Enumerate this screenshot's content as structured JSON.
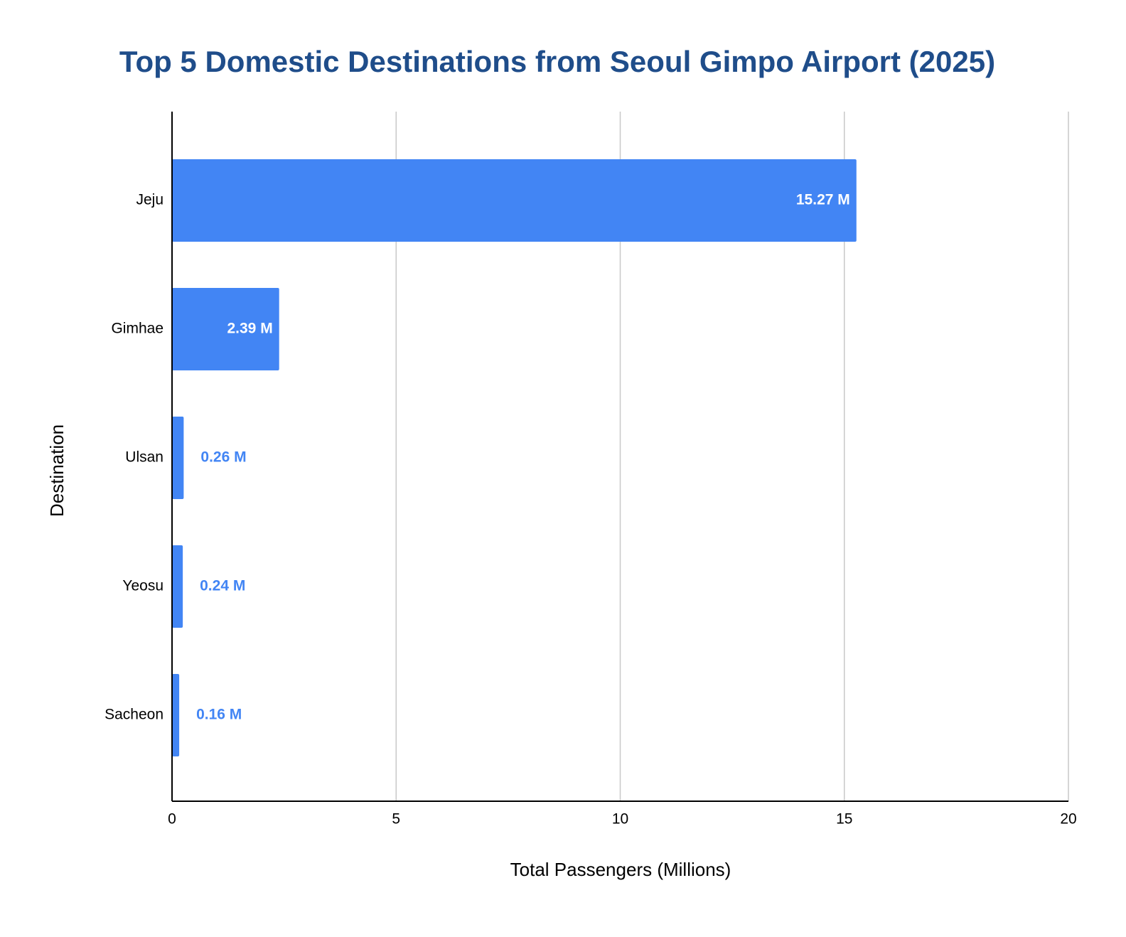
{
  "chart_data": {
    "type": "bar",
    "orientation": "horizontal",
    "title": "Top 5 Domestic Destinations from Seoul Gimpo Airport (2025)",
    "x_label": "Total Passengers (Millions)",
    "y_label": "Destination",
    "categories": [
      "Jeju",
      "Gimhae",
      "Ulsan",
      "Yeosu",
      "Sacheon"
    ],
    "values": [
      15.27,
      2.39,
      0.26,
      0.24,
      0.16
    ],
    "value_labels": [
      "15.27 M",
      "2.39 M",
      "0.26 M",
      "0.24 M",
      "0.16 M"
    ],
    "color": "#4285f4",
    "xlim": [
      0,
      20
    ],
    "xticks": [
      0,
      5,
      10,
      15,
      20
    ],
    "grid": true
  }
}
